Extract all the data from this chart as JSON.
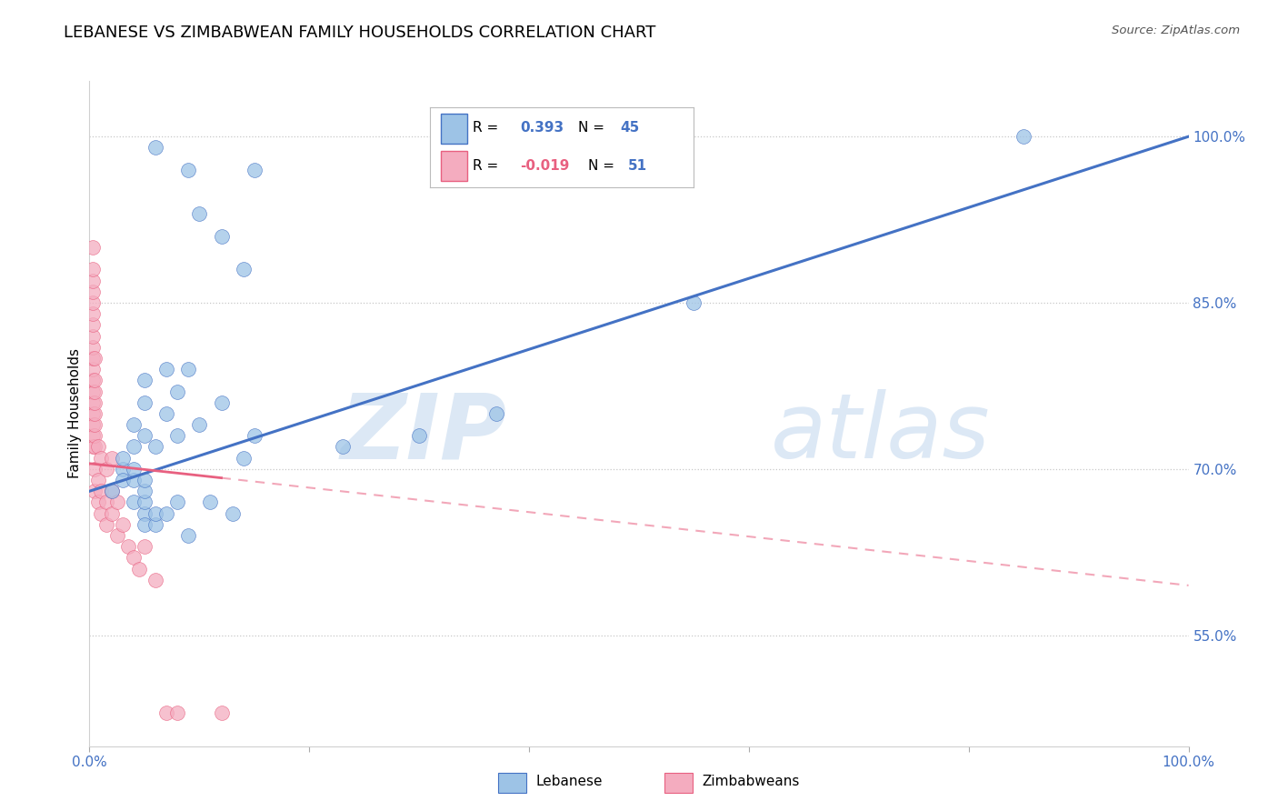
{
  "title": "LEBANESE VS ZIMBABWEAN FAMILY HOUSEHOLDS CORRELATION CHART",
  "source": "Source: ZipAtlas.com",
  "ylabel": "Family Households",
  "xlim": [
    0.0,
    100.0
  ],
  "ylim": [
    45.0,
    105.0
  ],
  "yticks": [
    55.0,
    70.0,
    85.0,
    100.0
  ],
  "xticks_major": [
    0.0,
    20.0,
    40.0,
    60.0,
    80.0,
    100.0
  ],
  "xtick_labels_show": [
    0.0,
    100.0
  ],
  "watermark_zip": "ZIP",
  "watermark_atlas": "atlas",
  "lebanese_x": [
    6,
    9,
    10,
    12,
    14,
    15,
    3,
    4,
    4,
    5,
    5,
    5,
    6,
    7,
    7,
    8,
    8,
    9,
    10,
    12,
    14,
    15,
    2,
    3,
    3,
    4,
    4,
    4,
    5,
    5,
    5,
    5,
    5,
    6,
    6,
    7,
    8,
    9,
    11,
    13,
    23,
    30,
    37,
    55,
    85
  ],
  "lebanese_y": [
    99,
    97,
    93,
    91,
    88,
    97,
    70,
    72,
    74,
    73,
    76,
    78,
    72,
    75,
    79,
    73,
    77,
    79,
    74,
    76,
    71,
    73,
    68,
    69,
    71,
    67,
    69,
    70,
    66,
    65,
    67,
    68,
    69,
    65,
    66,
    66,
    67,
    64,
    67,
    66,
    72,
    73,
    75,
    85,
    100
  ],
  "zimbabwean_x": [
    0.3,
    0.3,
    0.3,
    0.3,
    0.3,
    0.3,
    0.3,
    0.3,
    0.3,
    0.3,
    0.3,
    0.3,
    0.3,
    0.3,
    0.3,
    0.3,
    0.3,
    0.3,
    0.5,
    0.5,
    0.5,
    0.5,
    0.5,
    0.5,
    0.5,
    0.5,
    0.5,
    0.5,
    0.8,
    0.8,
    0.8,
    1.0,
    1.0,
    1.0,
    1.5,
    1.5,
    1.5,
    2.0,
    2.0,
    2.0,
    2.5,
    2.5,
    3.0,
    3.5,
    4.0,
    4.5,
    5.0,
    6.0,
    7.0,
    8.0,
    12.0
  ],
  "zimbabwean_y": [
    72,
    73,
    74,
    75,
    76,
    77,
    78,
    79,
    80,
    81,
    82,
    83,
    84,
    85,
    86,
    87,
    88,
    90,
    68,
    70,
    72,
    73,
    74,
    75,
    76,
    77,
    78,
    80,
    67,
    69,
    72,
    66,
    68,
    71,
    65,
    67,
    70,
    66,
    68,
    71,
    64,
    67,
    65,
    63,
    62,
    61,
    63,
    60,
    48,
    48,
    48
  ],
  "blue_line_x0": 0.0,
  "blue_line_y0": 68.0,
  "blue_line_x1": 100.0,
  "blue_line_y1": 100.0,
  "pink_line_solid_x0": 0.0,
  "pink_line_solid_y0": 70.5,
  "pink_line_solid_x1": 12.0,
  "pink_line_solid_y1": 69.2,
  "pink_line_dash_x0": 12.0,
  "pink_line_dash_y0": 69.2,
  "pink_line_dash_x1": 100.0,
  "pink_line_dash_y1": 59.5,
  "blue_color": "#4472c4",
  "blue_scatter_color": "#9dc3e6",
  "blue_scatter_edge": "#4472c4",
  "pink_color": "#e86080",
  "pink_scatter_color": "#f4acbf",
  "pink_scatter_edge": "#e86080",
  "grid_color": "#c8c8c8",
  "title_fontsize": 13,
  "axis_label_color": "#4472c4",
  "legend_r_color_blue": "#4472c4",
  "legend_r_color_pink": "#e86080",
  "legend_n_color": "#4472c4"
}
